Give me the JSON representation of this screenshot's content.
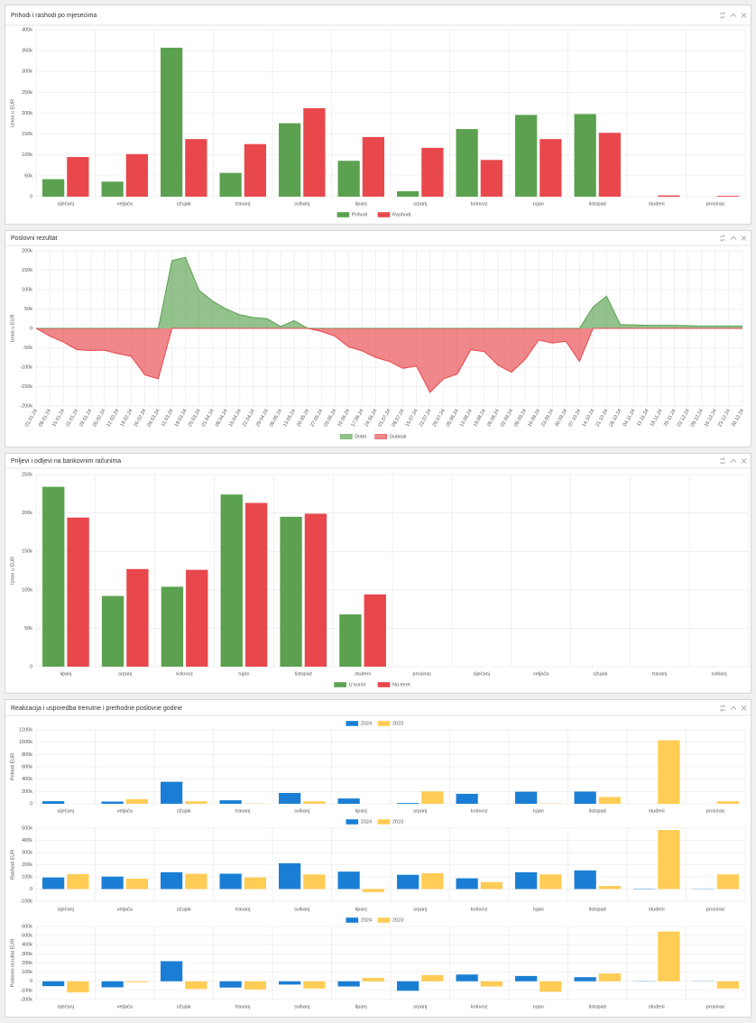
{
  "chart_data": [
    {
      "type": "bar",
      "title": "Prihodi i rashodi po mjesecima",
      "ylabel": "Iznos u EUR",
      "grid": true,
      "legend": "bottom",
      "categories": [
        "siječanj",
        "veljača",
        "ožujak",
        "travanj",
        "svibanj",
        "lipanj",
        "srpanj",
        "kolovoz",
        "rujan",
        "listopad",
        "studeni",
        "prosinac"
      ],
      "series": [
        {
          "name": "Prihodi",
          "color": "#5ba150",
          "values": [
            42000,
            36000,
            357000,
            57000,
            176000,
            86000,
            13000,
            162000,
            196000,
            198000,
            0,
            0
          ]
        },
        {
          "name": "Rashodi",
          "color": "#e8474c",
          "values": [
            95000,
            102000,
            138000,
            126000,
            212000,
            143000,
            117000,
            88000,
            138000,
            153000,
            3000,
            2000
          ]
        }
      ],
      "ylim": [
        0,
        400000
      ],
      "yticks": [
        0,
        {
          "value": 50000,
          "label": "50k"
        },
        {
          "value": 100000,
          "label": "100k"
        },
        {
          "value": 150000,
          "label": "150k"
        },
        {
          "value": 200000,
          "label": "200k"
        },
        {
          "value": 250000,
          "label": "250k"
        },
        {
          "value": 300000,
          "label": "300k"
        },
        {
          "value": 350000,
          "label": "350k"
        },
        {
          "value": 400000,
          "label": "400k"
        }
      ]
    },
    {
      "type": "area",
      "title": "Poslovni rezultat",
      "ylabel": "Iznos u EUR",
      "grid": true,
      "legend": "bottom",
      "categories": [
        "01.01.24",
        "08.01.24",
        "15.01.24",
        "22.01.24",
        "29.01.24",
        "05.02.24",
        "12.02.24",
        "19.02.24",
        "26.02.24",
        "04.03.24",
        "11.03.24",
        "18.03.24",
        "25.03.24",
        "01.04.24",
        "08.04.24",
        "15.04.24",
        "22.04.24",
        "29.04.24",
        "06.05.24",
        "13.05.24",
        "20.05.24",
        "27.05.24",
        "03.06.24",
        "10.06.24",
        "17.06.24",
        "24.06.24",
        "01.07.24",
        "08.07.24",
        "15.07.24",
        "22.07.24",
        "29.07.24",
        "05.08.24",
        "12.08.24",
        "19.08.24",
        "26.08.24",
        "02.09.24",
        "09.09.24",
        "16.09.24",
        "23.09.24",
        "30.09.24",
        "07.10.24",
        "14.10.24",
        "21.10.24",
        "28.10.24",
        "04.11.24",
        "11.11.24",
        "18.11.24",
        "25.11.24",
        "02.12.24",
        "09.12.24",
        "16.12.24",
        "23.12.24",
        "30.12.24"
      ],
      "series": [
        {
          "name": "Dobit",
          "color": "#5ba150",
          "values": [
            0,
            0,
            0,
            0,
            0,
            0,
            0,
            0,
            0,
            0,
            175000,
            183000,
            98000,
            70000,
            50000,
            35000,
            28000,
            25000,
            5000,
            20000,
            0,
            0,
            0,
            0,
            0,
            0,
            0,
            0,
            0,
            0,
            0,
            0,
            0,
            0,
            0,
            0,
            0,
            0,
            0,
            0,
            0,
            55000,
            83000,
            10000,
            9000,
            8000,
            8000,
            8000,
            7000,
            6000,
            6000,
            6000,
            6000
          ]
        },
        {
          "name": "Gubitak",
          "color": "#e8474c",
          "values": [
            0,
            -20000,
            -35000,
            -55000,
            -57000,
            -56000,
            -65000,
            -72000,
            -120000,
            -130000,
            0,
            0,
            0,
            0,
            0,
            0,
            0,
            0,
            0,
            0,
            0,
            -8000,
            -20000,
            -48000,
            -58000,
            -75000,
            -85000,
            -103000,
            -97000,
            -165000,
            -130000,
            -118000,
            -55000,
            -60000,
            -95000,
            -113000,
            -80000,
            -30000,
            -38000,
            -33000,
            -85000,
            0,
            0,
            0,
            0,
            0,
            0,
            0,
            0,
            0,
            0,
            0,
            0
          ]
        }
      ],
      "ylim": [
        -200000,
        200000
      ],
      "yticks": [
        {
          "value": -200000,
          "label": "-200k"
        },
        {
          "value": -150000,
          "label": "-150k"
        },
        {
          "value": -100000,
          "label": "-100k"
        },
        {
          "value": -50000,
          "label": "-50k"
        },
        0,
        {
          "value": 50000,
          "label": "50k"
        },
        {
          "value": 100000,
          "label": "100k"
        },
        {
          "value": 150000,
          "label": "150k"
        },
        {
          "value": 200000,
          "label": "200k"
        }
      ]
    },
    {
      "type": "bar",
      "title": "Priljevi i odljevi na bankovnim računima",
      "ylabel": "Iznos u EUR",
      "grid": true,
      "legend": "bottom",
      "categories": [
        "lipanj",
        "srpanj",
        "kolovoz",
        "rujan",
        "listopad",
        "studeni",
        "prosinac",
        "siječanj",
        "veljača",
        "ožujak",
        "travanj",
        "svibanj"
      ],
      "series": [
        {
          "name": "U korist",
          "color": "#5ba150",
          "values": [
            234000,
            92000,
            104000,
            224000,
            195000,
            68000,
            null,
            null,
            null,
            null,
            null,
            null
          ]
        },
        {
          "name": "Na teret",
          "color": "#e8474c",
          "values": [
            194000,
            127000,
            126000,
            213000,
            199000,
            94000,
            null,
            null,
            null,
            null,
            null,
            null
          ]
        }
      ],
      "ylim": [
        0,
        250000
      ],
      "yticks": [
        0,
        {
          "value": 50000,
          "label": "50k"
        },
        {
          "value": 100000,
          "label": "100k"
        },
        {
          "value": 150000,
          "label": "150k"
        },
        {
          "value": 200000,
          "label": "200k"
        },
        {
          "value": 250000,
          "label": "250k"
        }
      ]
    },
    {
      "type": "bar",
      "title": "Realizacija i usporedba trenutne i prethodne poslovne godine",
      "ylabel": "Prihodi EUR",
      "grid": true,
      "legend": "top",
      "categories": [
        "siječanj",
        "veljača",
        "ožujak",
        "travanj",
        "svibanj",
        "lipanj",
        "srpanj",
        "kolovoz",
        "rujan",
        "listopad",
        "studeni",
        "prosinac"
      ],
      "series": [
        {
          "name": "2024",
          "color": "#1a7fd4",
          "values": [
            42000,
            36000,
            357000,
            57000,
            176000,
            86000,
            13000,
            162000,
            196000,
            198000,
            0,
            0
          ]
        },
        {
          "name": "2023",
          "color": "#ffcc55",
          "values": [
            0,
            75000,
            40000,
            5000,
            40000,
            0,
            200000,
            0,
            5000,
            110000,
            1030000,
            40000
          ]
        }
      ],
      "ylim": [
        0,
        1200000
      ],
      "yticks": [
        0,
        {
          "value": 200000,
          "label": "200k"
        },
        {
          "value": 400000,
          "label": "400k"
        },
        {
          "value": 600000,
          "label": "600k"
        },
        {
          "value": 800000,
          "label": "800k"
        },
        {
          "value": 1000000,
          "label": "1000k"
        },
        {
          "value": 1200000,
          "label": "1200k"
        }
      ]
    },
    {
      "type": "bar",
      "ylabel": "Rashodi EUR",
      "grid": true,
      "legend": "top",
      "categories": [
        "siječanj",
        "veljača",
        "ožujak",
        "travanj",
        "svibanj",
        "lipanj",
        "srpanj",
        "kolovoz",
        "rujan",
        "listopad",
        "studeni",
        "prosinac"
      ],
      "series": [
        {
          "name": "2024",
          "color": "#1a7fd4",
          "values": [
            95000,
            102000,
            138000,
            126000,
            212000,
            143000,
            117000,
            88000,
            138000,
            153000,
            3000,
            2000
          ]
        },
        {
          "name": "2023",
          "color": "#ffcc55",
          "values": [
            122000,
            85000,
            125000,
            95000,
            120000,
            -25000,
            130000,
            57000,
            120000,
            25000,
            485000,
            120000
          ]
        }
      ],
      "ylim": [
        -100000,
        500000
      ],
      "yticks": [
        {
          "value": -100000,
          "label": "-100k"
        },
        0,
        {
          "value": 100000,
          "label": "100k"
        },
        {
          "value": 200000,
          "label": "200k"
        },
        {
          "value": 300000,
          "label": "300k"
        },
        {
          "value": 400000,
          "label": "400k"
        },
        {
          "value": 500000,
          "label": "500k"
        }
      ]
    },
    {
      "type": "bar",
      "ylabel": "Poslovni rezultat EUR",
      "grid": true,
      "legend": "top",
      "categories": [
        "siječanj",
        "veljača",
        "ožujak",
        "travanj",
        "svibanj",
        "lipanj",
        "srpanj",
        "kolovoz",
        "rujan",
        "listopad",
        "studeni",
        "prosinac"
      ],
      "series": [
        {
          "name": "2024",
          "color": "#1a7fd4",
          "values": [
            -53000,
            -66000,
            220000,
            -69000,
            -36000,
            -57000,
            -104000,
            74000,
            58000,
            45000,
            -3000,
            -2000
          ]
        },
        {
          "name": "2023",
          "color": "#ffcc55",
          "values": [
            -122000,
            -10000,
            -85000,
            -90000,
            -80000,
            37000,
            68000,
            -57000,
            -115000,
            85000,
            545000,
            -80000
          ]
        }
      ],
      "ylim": [
        -200000,
        600000
      ],
      "yticks": [
        {
          "value": -200000,
          "label": "-200k"
        },
        {
          "value": -100000,
          "label": "-100k"
        },
        0,
        {
          "value": 100000,
          "label": "100k"
        },
        {
          "value": 200000,
          "label": "200k"
        },
        {
          "value": 300000,
          "label": "300k"
        },
        {
          "value": 400000,
          "label": "400k"
        },
        {
          "value": 500000,
          "label": "500k"
        },
        {
          "value": 600000,
          "label": "600k"
        }
      ]
    }
  ]
}
